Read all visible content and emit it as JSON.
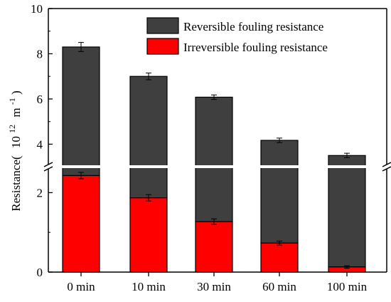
{
  "chart_data": {
    "type": "bar",
    "stacked": true,
    "categories": [
      "0 min",
      "10 min",
      "30 min",
      "60 min",
      "100 min"
    ],
    "series": [
      {
        "name": "Irreversible fouling resistance",
        "color": "#ff0000",
        "values": [
          2.43,
          1.87,
          1.27,
          0.73,
          0.13
        ],
        "errors": [
          0.08,
          0.08,
          0.07,
          0.05,
          0.03
        ]
      },
      {
        "name": "Reversible fouling resistance",
        "color": "#3f3f3f",
        "values": [
          5.87,
          5.13,
          4.81,
          3.44,
          3.37
        ],
        "errors": [
          0.2,
          0.15,
          0.1,
          0.1,
          0.1
        ]
      }
    ],
    "totals": [
      8.3,
      7.0,
      6.08,
      4.17,
      3.5
    ],
    "ylabel_main": "Resistance(",
    "ylabel_unit": "10",
    "ylabel_exp1": "12",
    "ylabel_unit2": "m",
    "ylabel_exp2": "-1",
    "ylabel_close": ")",
    "y_axis_break": true,
    "ylim_lower": [
      0,
      2.6
    ],
    "ylim_upper": [
      3.1,
      10
    ],
    "yticks_lower": [
      "0",
      "2"
    ],
    "yticks_upper": [
      "4",
      "6",
      "8",
      "10"
    ],
    "legend_position": "top-right",
    "grid": false
  }
}
